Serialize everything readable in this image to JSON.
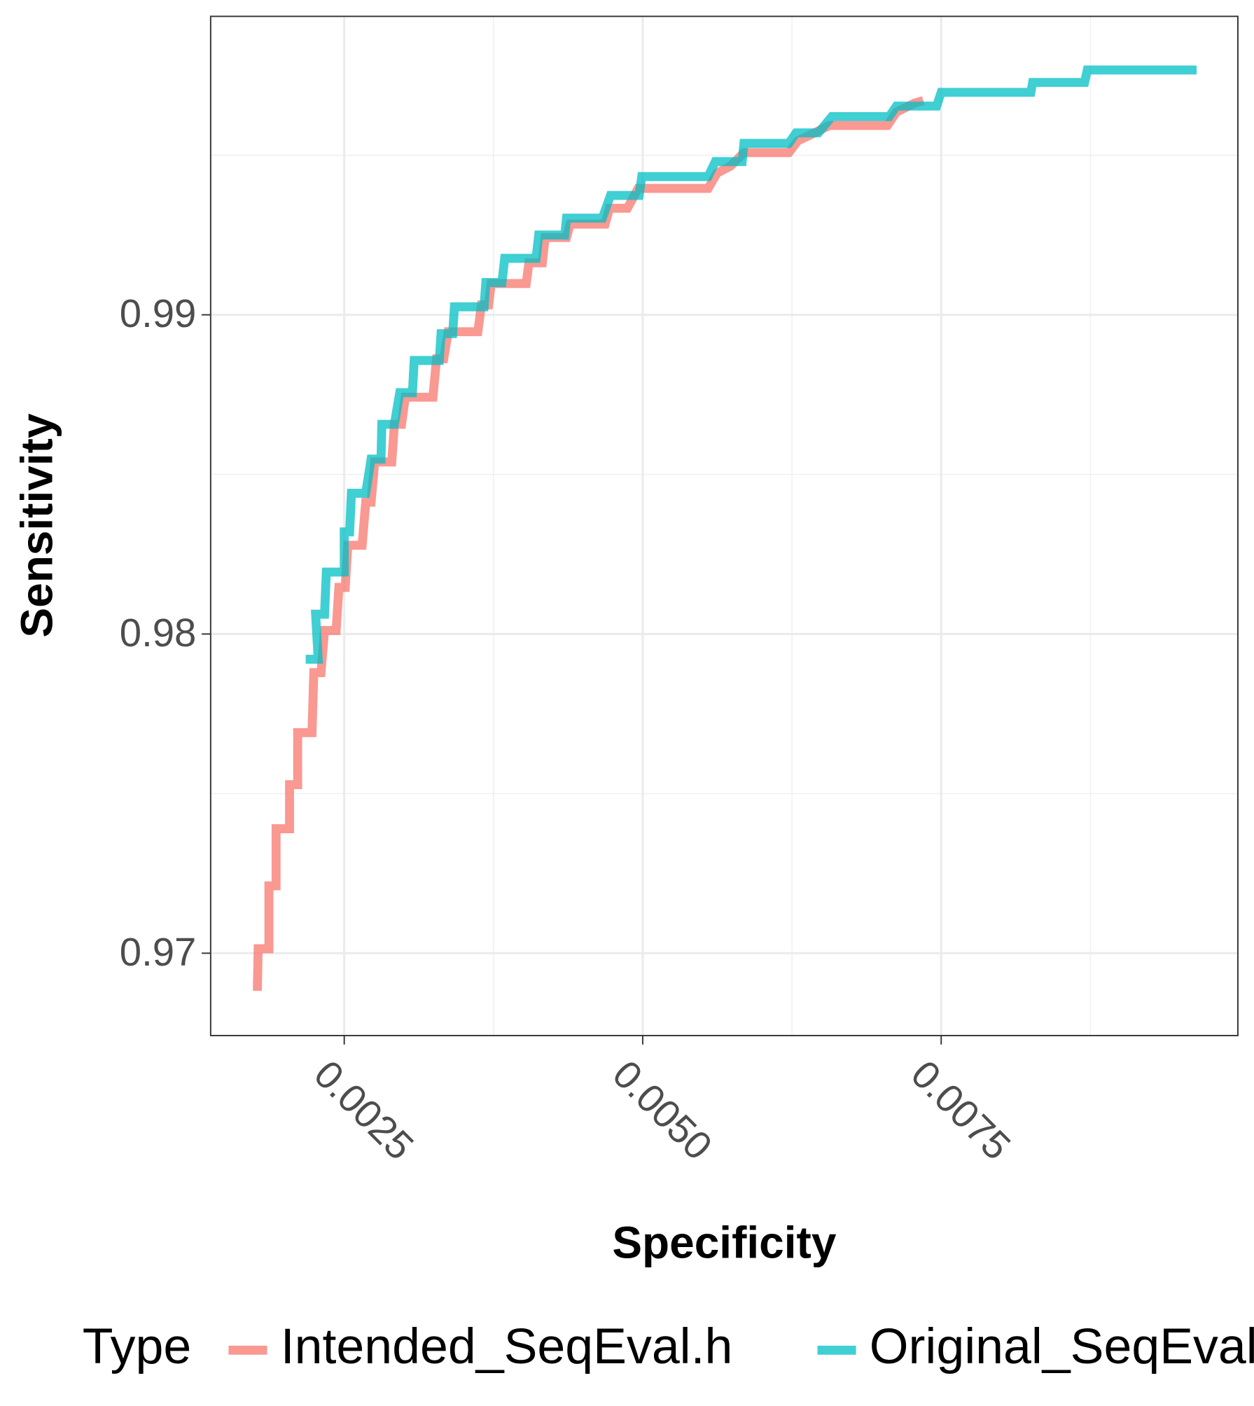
{
  "chart_data": {
    "type": "line",
    "x_label": "Specificity",
    "y_label": "Sensitivity",
    "legend_title": "Type",
    "xlim": [
      0.001381,
      0.009985
    ],
    "ylim": [
      0.96742,
      0.99935
    ],
    "xticks": [
      0.0025,
      {
        "value": 0.005,
        "label": "0.0050"
      },
      0.0075
    ],
    "yticks": [
      0.97,
      0.98,
      0.99
    ],
    "grid": true,
    "legend": "bottom",
    "series": [
      {
        "name": "Intended_SeqEval.h",
        "color": "#F8766D",
        "x": [
          0.001772,
          0.001779,
          0.001869,
          0.001869,
          0.001929,
          0.001929,
          0.002042,
          0.002042,
          0.00211,
          0.00211,
          0.00223,
          0.002245,
          0.002305,
          0.002335,
          0.002432,
          0.002455,
          0.002508,
          0.00253,
          0.00265,
          0.00268,
          0.002725,
          0.002755,
          0.002898,
          0.00292,
          0.00298,
          0.003011,
          0.003243,
          0.003273,
          0.003333,
          0.003371,
          0.003619,
          0.003649,
          0.003709,
          0.003731,
          0.004024,
          0.004047,
          0.004159,
          0.004182,
          0.004362,
          0.004392,
          0.004685,
          0.004722,
          0.004872,
          0.004962,
          0.005548,
          0.005623,
          0.005736,
          0.005848,
          0.006224,
          0.006299,
          0.006411,
          0.006562,
          0.00705,
          0.007125,
          0.007275,
          0.00735
        ],
        "values": [
          0.96882,
          0.97014,
          0.97014,
          0.97211,
          0.97211,
          0.9739,
          0.9739,
          0.97528,
          0.97528,
          0.97691,
          0.97691,
          0.97879,
          0.97879,
          0.98011,
          0.98011,
          0.98146,
          0.98146,
          0.98278,
          0.98278,
          0.98413,
          0.98413,
          0.98539,
          0.98539,
          0.98657,
          0.98657,
          0.98742,
          0.98742,
          0.98862,
          0.98862,
          0.98947,
          0.98947,
          0.99031,
          0.99031,
          0.99098,
          0.99098,
          0.99163,
          0.99163,
          0.99242,
          0.99242,
          0.99284,
          0.99284,
          0.99334,
          0.99334,
          0.99396,
          0.99396,
          0.99444,
          0.99466,
          0.99508,
          0.99508,
          0.99545,
          0.99565,
          0.99593,
          0.99593,
          0.99635,
          0.99663,
          0.99671
        ]
      },
      {
        "name": "Original_SeqEval.h",
        "color": "#00BFC4",
        "x": [
          0.002177,
          0.002282,
          0.00226,
          0.002335,
          0.00235,
          0.0025,
          0.0025,
          0.002545,
          0.00256,
          0.00268,
          0.002725,
          0.002808,
          0.002815,
          0.00292,
          0.002965,
          0.003071,
          0.003086,
          0.003296,
          0.003311,
          0.003408,
          0.003423,
          0.003671,
          0.003686,
          0.003821,
          0.003844,
          0.004107,
          0.004129,
          0.004347,
          0.004362,
          0.004662,
          0.00473,
          0.00497,
          0.004992,
          0.005548,
          0.005608,
          0.005833,
          0.005848,
          0.006224,
          0.006284,
          0.006471,
          0.006584,
          0.007065,
          0.007125,
          0.007462,
          0.0075,
          0.008251,
          0.008266,
          0.008701,
          0.008724,
          0.009602,
          0.009602
        ],
        "values": [
          0.97921,
          0.97921,
          0.98062,
          0.98062,
          0.98194,
          0.98194,
          0.9832,
          0.9832,
          0.98441,
          0.98441,
          0.98548,
          0.98548,
          0.98657,
          0.98657,
          0.98756,
          0.98756,
          0.98857,
          0.98857,
          0.98941,
          0.98941,
          0.99025,
          0.99025,
          0.99101,
          0.99101,
          0.99177,
          0.99177,
          0.9925,
          0.9925,
          0.99303,
          0.99303,
          0.99374,
          0.99374,
          0.99433,
          0.99433,
          0.9948,
          0.9948,
          0.99537,
          0.99537,
          0.9957,
          0.9957,
          0.99621,
          0.99621,
          0.99654,
          0.99654,
          0.99697,
          0.99697,
          0.99728,
          0.99728,
          0.99767,
          0.99767,
          0.99781
        ]
      }
    ]
  }
}
